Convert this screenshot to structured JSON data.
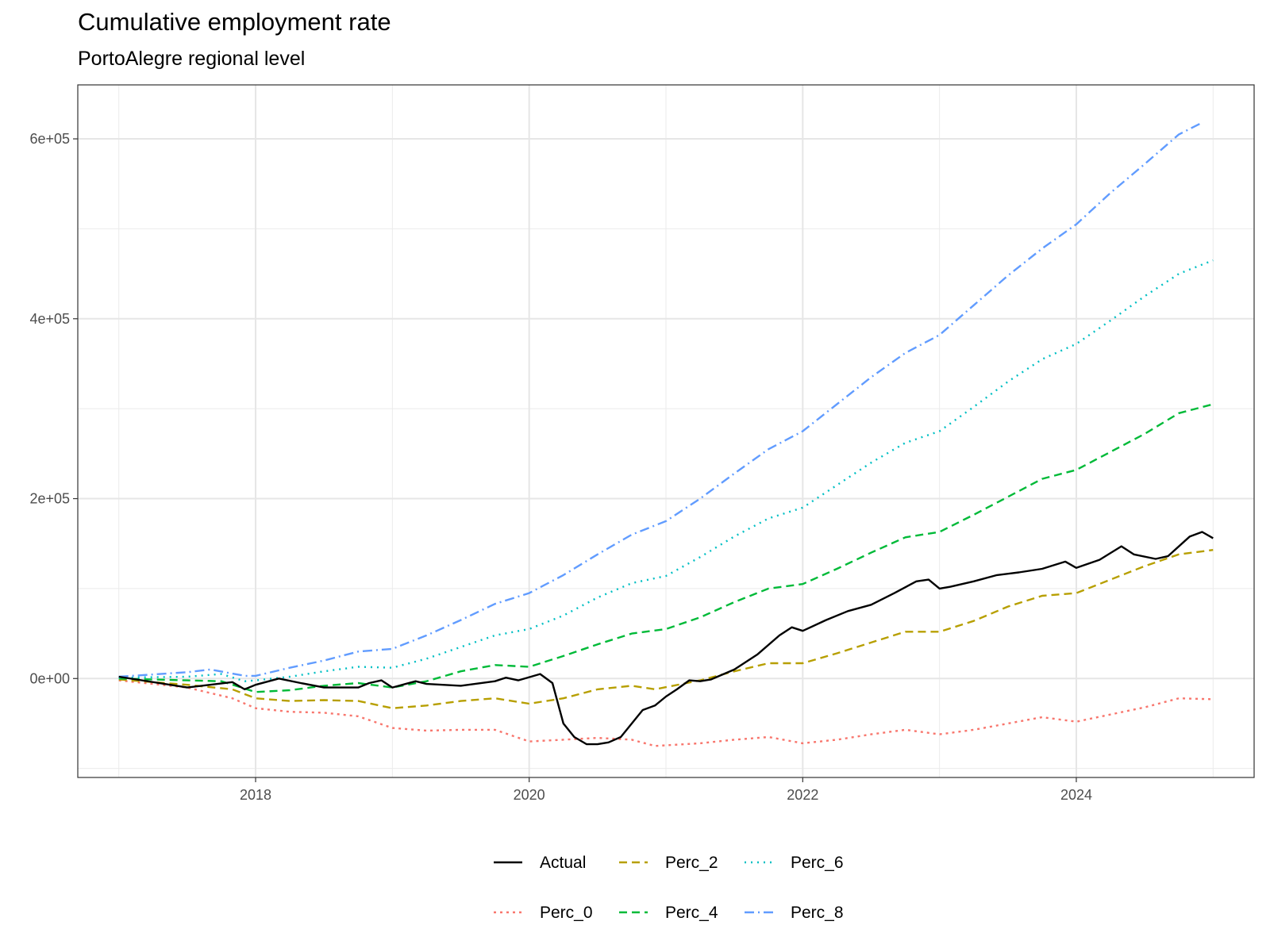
{
  "title": "Cumulative employment rate",
  "subtitle": "PortoAlegre regional level",
  "chart_data": {
    "type": "line",
    "title": "Cumulative employment rate",
    "subtitle": "PortoAlegre regional level",
    "xlabel": "",
    "ylabel": "",
    "x_range": [
      2016.7,
      2025.3
    ],
    "y_range": [
      -110000,
      660000
    ],
    "x_ticks": [
      2018,
      2020,
      2022,
      2024
    ],
    "y_ticks": [
      0,
      200000,
      400000,
      600000
    ],
    "x_tick_labels": [
      "2018",
      "2020",
      "2022",
      "2024"
    ],
    "y_tick_labels": [
      "0e+00",
      "2e+05",
      "4e+05",
      "6e+05"
    ],
    "grid": true,
    "legend_position": "bottom",
    "legend_rows": [
      [
        "Actual",
        "Perc_2",
        "Perc_6"
      ],
      [
        "Perc_0",
        "Perc_4",
        "Perc_8"
      ]
    ],
    "series": [
      {
        "name": "Actual",
        "color": "#000000",
        "dash": "",
        "points": [
          [
            2017.0,
            2000
          ],
          [
            2017.5,
            -10000
          ],
          [
            2017.83,
            -4000
          ],
          [
            2017.92,
            -12000
          ],
          [
            2018.0,
            -7000
          ],
          [
            2018.17,
            0
          ],
          [
            2018.33,
            -5000
          ],
          [
            2018.5,
            -10000
          ],
          [
            2018.75,
            -10000
          ],
          [
            2018.83,
            -5000
          ],
          [
            2018.92,
            -2000
          ],
          [
            2019.0,
            -10000
          ],
          [
            2019.17,
            -3000
          ],
          [
            2019.25,
            -6000
          ],
          [
            2019.5,
            -8000
          ],
          [
            2019.75,
            -3000
          ],
          [
            2019.83,
            1000
          ],
          [
            2019.92,
            -2000
          ],
          [
            2020.08,
            5000
          ],
          [
            2020.17,
            -5000
          ],
          [
            2020.25,
            -50000
          ],
          [
            2020.33,
            -65000
          ],
          [
            2020.42,
            -73000
          ],
          [
            2020.5,
            -73000
          ],
          [
            2020.58,
            -71000
          ],
          [
            2020.67,
            -65000
          ],
          [
            2020.75,
            -50000
          ],
          [
            2020.83,
            -35000
          ],
          [
            2020.92,
            -30000
          ],
          [
            2021.0,
            -20000
          ],
          [
            2021.08,
            -12000
          ],
          [
            2021.17,
            -2000
          ],
          [
            2021.25,
            -3000
          ],
          [
            2021.33,
            -1000
          ],
          [
            2021.5,
            10000
          ],
          [
            2021.67,
            27000
          ],
          [
            2021.83,
            48000
          ],
          [
            2021.92,
            57000
          ],
          [
            2022.0,
            53000
          ],
          [
            2022.17,
            65000
          ],
          [
            2022.33,
            75000
          ],
          [
            2022.5,
            82000
          ],
          [
            2022.67,
            95000
          ],
          [
            2022.83,
            108000
          ],
          [
            2022.92,
            110000
          ],
          [
            2023.0,
            100000
          ],
          [
            2023.08,
            102000
          ],
          [
            2023.25,
            108000
          ],
          [
            2023.42,
            115000
          ],
          [
            2023.58,
            118000
          ],
          [
            2023.75,
            122000
          ],
          [
            2023.92,
            130000
          ],
          [
            2024.0,
            123000
          ],
          [
            2024.17,
            132000
          ],
          [
            2024.33,
            147000
          ],
          [
            2024.42,
            138000
          ],
          [
            2024.58,
            133000
          ],
          [
            2024.67,
            136000
          ],
          [
            2024.83,
            158000
          ],
          [
            2024.92,
            163000
          ],
          [
            2025.0,
            156000
          ]
        ]
      },
      {
        "name": "Perc_2",
        "color": "#b79f00",
        "dash": "10,6",
        "points": [
          [
            2017.0,
            -1000
          ],
          [
            2017.5,
            -7000
          ],
          [
            2017.83,
            -12000
          ],
          [
            2018.0,
            -22000
          ],
          [
            2018.25,
            -25000
          ],
          [
            2018.5,
            -24000
          ],
          [
            2018.75,
            -25000
          ],
          [
            2019.0,
            -33000
          ],
          [
            2019.25,
            -30000
          ],
          [
            2019.5,
            -25000
          ],
          [
            2019.75,
            -22000
          ],
          [
            2020.0,
            -28000
          ],
          [
            2020.25,
            -22000
          ],
          [
            2020.5,
            -12000
          ],
          [
            2020.75,
            -8000
          ],
          [
            2020.92,
            -12000
          ],
          [
            2021.25,
            -2000
          ],
          [
            2021.5,
            8000
          ],
          [
            2021.75,
            17000
          ],
          [
            2022.0,
            17000
          ],
          [
            2022.25,
            28000
          ],
          [
            2022.5,
            40000
          ],
          [
            2022.75,
            52000
          ],
          [
            2023.0,
            52000
          ],
          [
            2023.25,
            64000
          ],
          [
            2023.5,
            80000
          ],
          [
            2023.75,
            92000
          ],
          [
            2024.0,
            95000
          ],
          [
            2024.25,
            110000
          ],
          [
            2024.5,
            125000
          ],
          [
            2024.75,
            138000
          ],
          [
            2025.0,
            143000
          ]
        ]
      },
      {
        "name": "Perc_6",
        "color": "#00bfc4",
        "dash": "2,6",
        "points": [
          [
            2017.0,
            1000
          ],
          [
            2017.5,
            2000
          ],
          [
            2017.75,
            5000
          ],
          [
            2017.92,
            -3000
          ],
          [
            2018.0,
            -2000
          ],
          [
            2018.25,
            2000
          ],
          [
            2018.5,
            8000
          ],
          [
            2018.75,
            13000
          ],
          [
            2019.0,
            12000
          ],
          [
            2019.25,
            22000
          ],
          [
            2019.5,
            35000
          ],
          [
            2019.75,
            48000
          ],
          [
            2020.0,
            55000
          ],
          [
            2020.25,
            70000
          ],
          [
            2020.5,
            90000
          ],
          [
            2020.75,
            106000
          ],
          [
            2021.0,
            114000
          ],
          [
            2021.25,
            135000
          ],
          [
            2021.5,
            158000
          ],
          [
            2021.75,
            178000
          ],
          [
            2022.0,
            190000
          ],
          [
            2022.25,
            215000
          ],
          [
            2022.5,
            240000
          ],
          [
            2022.75,
            262000
          ],
          [
            2023.0,
            275000
          ],
          [
            2023.25,
            302000
          ],
          [
            2023.5,
            330000
          ],
          [
            2023.75,
            355000
          ],
          [
            2024.0,
            372000
          ],
          [
            2024.25,
            398000
          ],
          [
            2024.5,
            425000
          ],
          [
            2024.75,
            450000
          ],
          [
            2025.0,
            465000
          ]
        ]
      },
      {
        "name": "Perc_0",
        "color": "#f8766d",
        "dash": "3,5",
        "points": [
          [
            2017.0,
            -2000
          ],
          [
            2017.5,
            -10000
          ],
          [
            2017.83,
            -22000
          ],
          [
            2018.0,
            -33000
          ],
          [
            2018.25,
            -37000
          ],
          [
            2018.5,
            -38000
          ],
          [
            2018.75,
            -42000
          ],
          [
            2019.0,
            -55000
          ],
          [
            2019.25,
            -58000
          ],
          [
            2019.5,
            -57000
          ],
          [
            2019.75,
            -57000
          ],
          [
            2020.0,
            -70000
          ],
          [
            2020.25,
            -68000
          ],
          [
            2020.5,
            -66000
          ],
          [
            2020.75,
            -68000
          ],
          [
            2020.92,
            -75000
          ],
          [
            2021.25,
            -72000
          ],
          [
            2021.5,
            -68000
          ],
          [
            2021.75,
            -65000
          ],
          [
            2022.0,
            -72000
          ],
          [
            2022.25,
            -68000
          ],
          [
            2022.5,
            -62000
          ],
          [
            2022.75,
            -57000
          ],
          [
            2023.0,
            -62000
          ],
          [
            2023.25,
            -57000
          ],
          [
            2023.5,
            -50000
          ],
          [
            2023.75,
            -43000
          ],
          [
            2024.0,
            -48000
          ],
          [
            2024.25,
            -40000
          ],
          [
            2024.5,
            -32000
          ],
          [
            2024.75,
            -22000
          ],
          [
            2025.0,
            -23000
          ]
        ]
      },
      {
        "name": "Perc_4",
        "color": "#00ba38",
        "dash": "10,6",
        "points": [
          [
            2017.0,
            0
          ],
          [
            2017.5,
            -2000
          ],
          [
            2017.75,
            -3000
          ],
          [
            2018.0,
            -15000
          ],
          [
            2018.25,
            -13000
          ],
          [
            2018.5,
            -8000
          ],
          [
            2018.75,
            -5000
          ],
          [
            2019.0,
            -10000
          ],
          [
            2019.25,
            -3000
          ],
          [
            2019.5,
            8000
          ],
          [
            2019.75,
            15000
          ],
          [
            2020.0,
            13000
          ],
          [
            2020.25,
            25000
          ],
          [
            2020.5,
            38000
          ],
          [
            2020.75,
            50000
          ],
          [
            2021.0,
            55000
          ],
          [
            2021.25,
            68000
          ],
          [
            2021.5,
            85000
          ],
          [
            2021.75,
            100000
          ],
          [
            2022.0,
            105000
          ],
          [
            2022.25,
            122000
          ],
          [
            2022.5,
            140000
          ],
          [
            2022.75,
            157000
          ],
          [
            2023.0,
            163000
          ],
          [
            2023.25,
            182000
          ],
          [
            2023.5,
            202000
          ],
          [
            2023.75,
            222000
          ],
          [
            2024.0,
            232000
          ],
          [
            2024.25,
            252000
          ],
          [
            2024.5,
            272000
          ],
          [
            2024.75,
            295000
          ],
          [
            2025.0,
            305000
          ]
        ]
      },
      {
        "name": "Perc_8",
        "color": "#619cff",
        "dash": "12,5,2,5",
        "points": [
          [
            2017.0,
            2000
          ],
          [
            2017.5,
            7000
          ],
          [
            2017.67,
            10000
          ],
          [
            2017.92,
            3000
          ],
          [
            2018.0,
            3000
          ],
          [
            2018.25,
            12000
          ],
          [
            2018.5,
            20000
          ],
          [
            2018.75,
            30000
          ],
          [
            2019.0,
            33000
          ],
          [
            2019.25,
            48000
          ],
          [
            2019.5,
            65000
          ],
          [
            2019.75,
            83000
          ],
          [
            2020.0,
            95000
          ],
          [
            2020.25,
            115000
          ],
          [
            2020.5,
            138000
          ],
          [
            2020.75,
            160000
          ],
          [
            2021.0,
            175000
          ],
          [
            2021.25,
            200000
          ],
          [
            2021.5,
            228000
          ],
          [
            2021.75,
            255000
          ],
          [
            2022.0,
            275000
          ],
          [
            2022.25,
            305000
          ],
          [
            2022.5,
            335000
          ],
          [
            2022.75,
            362000
          ],
          [
            2023.0,
            382000
          ],
          [
            2023.25,
            415000
          ],
          [
            2023.5,
            448000
          ],
          [
            2023.75,
            478000
          ],
          [
            2024.0,
            505000
          ],
          [
            2024.25,
            540000
          ],
          [
            2024.5,
            572000
          ],
          [
            2024.75,
            605000
          ],
          [
            2024.92,
            618000
          ]
        ]
      }
    ]
  }
}
